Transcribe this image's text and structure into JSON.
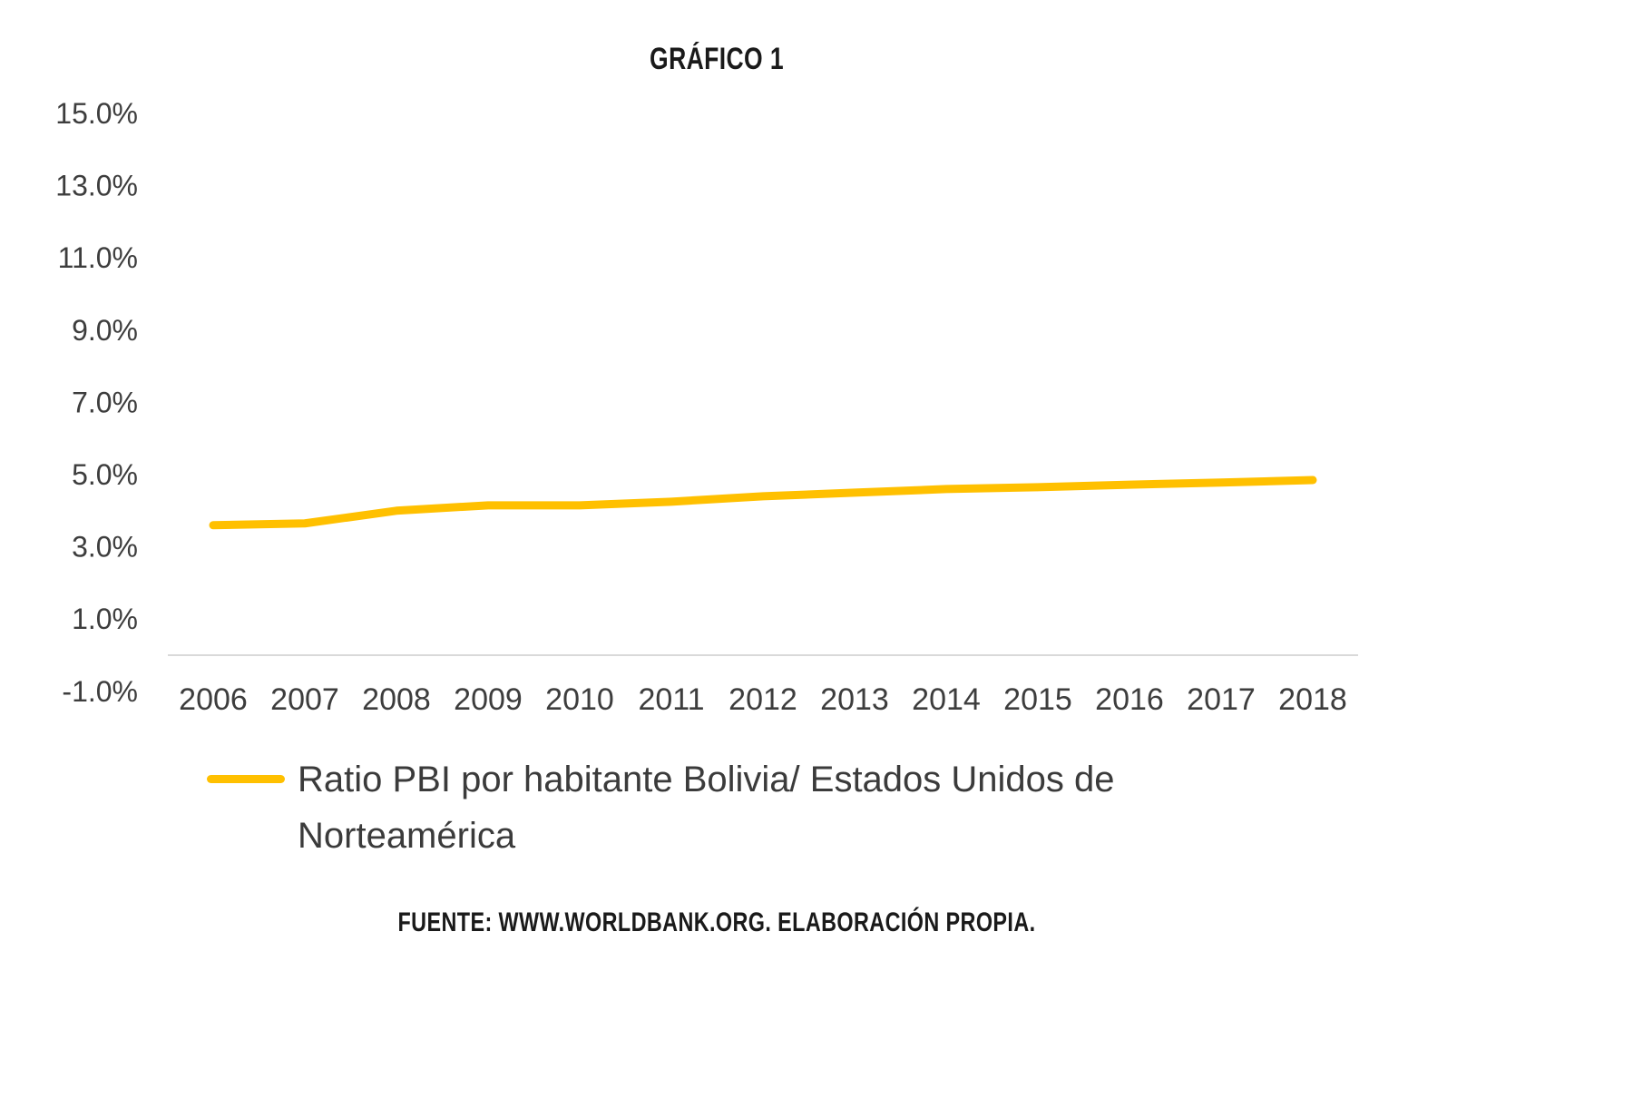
{
  "title": "GRÁFICO 1",
  "footer": "FUENTE: WWW.WORLDBANK.ORG. ELABORACIÓN PROPIA.",
  "colors": {
    "line": "#FFC000",
    "axis": "#D9D9D9",
    "tick_text": "#3d3d3d"
  },
  "chart_data": {
    "type": "line",
    "title": "GRÁFICO 1",
    "x": [
      2006,
      2007,
      2008,
      2009,
      2010,
      2011,
      2012,
      2013,
      2014,
      2015,
      2016,
      2017,
      2018
    ],
    "series": [
      {
        "name": "Ratio PBI por habitante Bolivia/ Estados Unidos de Norteamérica",
        "color": "#FFC000",
        "values": [
          3.6,
          3.65,
          4.0,
          4.15,
          4.15,
          4.25,
          4.4,
          4.5,
          4.6,
          4.65,
          4.72,
          4.78,
          4.85
        ]
      }
    ],
    "ylim": [
      -1,
      15
    ],
    "yticks": [
      {
        "value": 15,
        "label": "15.0%"
      },
      {
        "value": 13,
        "label": "13.0%"
      },
      {
        "value": 11,
        "label": "11.0%"
      },
      {
        "value": 9,
        "label": "9.0%"
      },
      {
        "value": 7,
        "label": "7.0%"
      },
      {
        "value": 5,
        "label": "5.0%"
      },
      {
        "value": 3,
        "label": "3.0%"
      },
      {
        "value": 1,
        "label": "1.0%"
      },
      {
        "value": -1,
        "label": "-1.0%"
      }
    ],
    "axis_color": "#D9D9D9",
    "grid": false,
    "legend_position": "bottom",
    "source_note": "FUENTE: WWW.WORLDBANK.ORG. ELABORACIÓN PROPIA."
  }
}
